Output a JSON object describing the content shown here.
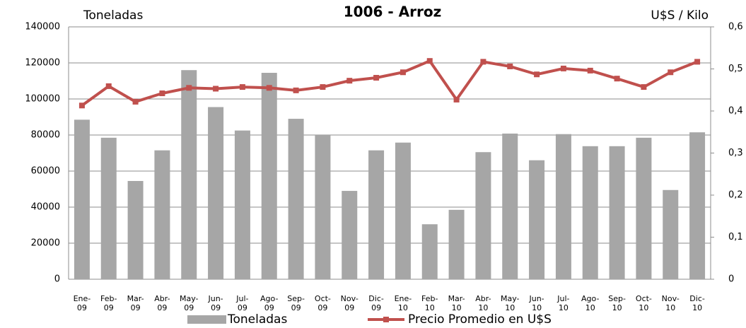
{
  "chart_data": {
    "type": "bar_line",
    "title": "1006 - Arroz",
    "ylabel": "Toneladas",
    "y2label": "U$S / Kilo",
    "categories": [
      "Ene-09",
      "Feb-09",
      "Mar-09",
      "Abr-09",
      "May-09",
      "Jun-09",
      "Jul-09",
      "Ago-09",
      "Sep-09",
      "Oct-09",
      "Nov-09",
      "Dic-09",
      "Ene-10",
      "Feb-10",
      "Mar-10",
      "Abr-10",
      "May-10",
      "Jun-10",
      "Jul-10",
      "Ago-10",
      "Sep-10",
      "Oct-10",
      "Nov-10",
      "Dic-10"
    ],
    "series": [
      {
        "name": "Toneladas",
        "type": "bar",
        "color": "#a6a6a6",
        "values": [
          88500,
          78500,
          54500,
          71500,
          116000,
          95500,
          82500,
          114500,
          89000,
          80000,
          49000,
          71500,
          75800,
          30500,
          38500,
          70500,
          80800,
          66000,
          80500,
          73800,
          73800,
          78500,
          49500,
          81500
        ]
      },
      {
        "name": "Precio Promedio en  U$S",
        "type": "line",
        "axis": "y2",
        "color": "#c0504d",
        "values": [
          0.413,
          0.459,
          0.422,
          0.442,
          0.455,
          0.453,
          0.457,
          0.455,
          0.449,
          0.457,
          0.472,
          0.479,
          0.492,
          0.519,
          0.427,
          0.517,
          0.506,
          0.487,
          0.501,
          0.496,
          0.477,
          0.457,
          0.492,
          0.517
        ]
      }
    ],
    "ylim": [
      0,
      140000
    ],
    "yticks": [
      0,
      20000,
      40000,
      60000,
      80000,
      100000,
      120000,
      140000
    ],
    "y2lim": [
      0,
      0.6
    ],
    "y2ticks": [
      0,
      {
        "value": 0.1,
        "label": "0,1"
      },
      {
        "value": 0.2,
        "label": "0,2"
      },
      {
        "value": 0.3,
        "label": "0,3"
      },
      {
        "value": 0.4,
        "label": "0,4"
      },
      {
        "value": 0.5,
        "label": "0,5"
      },
      {
        "value": 0.6,
        "label": "0,6"
      }
    ],
    "grid": true,
    "legend": "bottom"
  }
}
